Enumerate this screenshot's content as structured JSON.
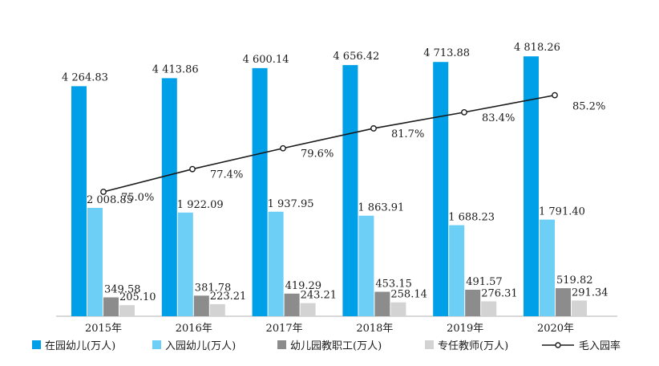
{
  "chart_data": {
    "type": "bar",
    "categories": [
      "2015年",
      "2016年",
      "2017年",
      "2018年",
      "2019年",
      "2020年"
    ],
    "series": [
      {
        "name": "在园幼儿(万人)",
        "type": "bar",
        "color": "#00A0E9",
        "values": [
          4264.83,
          4413.86,
          4600.14,
          4656.42,
          4713.88,
          4818.26
        ],
        "labels": [
          "4 264.83",
          "4 413.86",
          "4 600.14",
          "4 656.42",
          "4 713.88",
          "4 818.26"
        ]
      },
      {
        "name": "入园幼儿(万人)",
        "type": "bar",
        "color": "#6DCFF6",
        "values": [
          2008.85,
          1922.09,
          1937.95,
          1863.91,
          1688.23,
          1791.4
        ],
        "labels": [
          "2 008.85",
          "1 922.09",
          "1 937.95",
          "1 863.91",
          "1 688.23",
          "1 791.40"
        ]
      },
      {
        "name": "幼儿园教职工(万人)",
        "type": "bar",
        "color": "#8C8C8C",
        "values": [
          349.58,
          381.78,
          419.29,
          453.15,
          491.57,
          519.82
        ],
        "labels": [
          "349.58",
          "381.78",
          "419.29",
          "453.15",
          "491.57",
          "519.82"
        ]
      },
      {
        "name": "专任教师(万人)",
        "type": "bar",
        "color": "#D3D3D3",
        "values": [
          205.1,
          223.21,
          243.21,
          258.14,
          276.31,
          291.34
        ],
        "labels": [
          "205.10",
          "223.21",
          "243.21",
          "258.14",
          "276.31",
          "291.34"
        ]
      },
      {
        "name": "毛入园率",
        "type": "line",
        "color": "#1a1a1a",
        "values": [
          75.0,
          77.4,
          79.6,
          81.7,
          83.4,
          85.2
        ],
        "labels": [
          "75.0%",
          "77.4%",
          "79.6%",
          "81.7%",
          "83.4%",
          "85.2%"
        ]
      }
    ],
    "ylim": [
      0,
      5500
    ],
    "y2lim": [
      60,
      90
    ],
    "grid": false,
    "legend": "bottom"
  }
}
